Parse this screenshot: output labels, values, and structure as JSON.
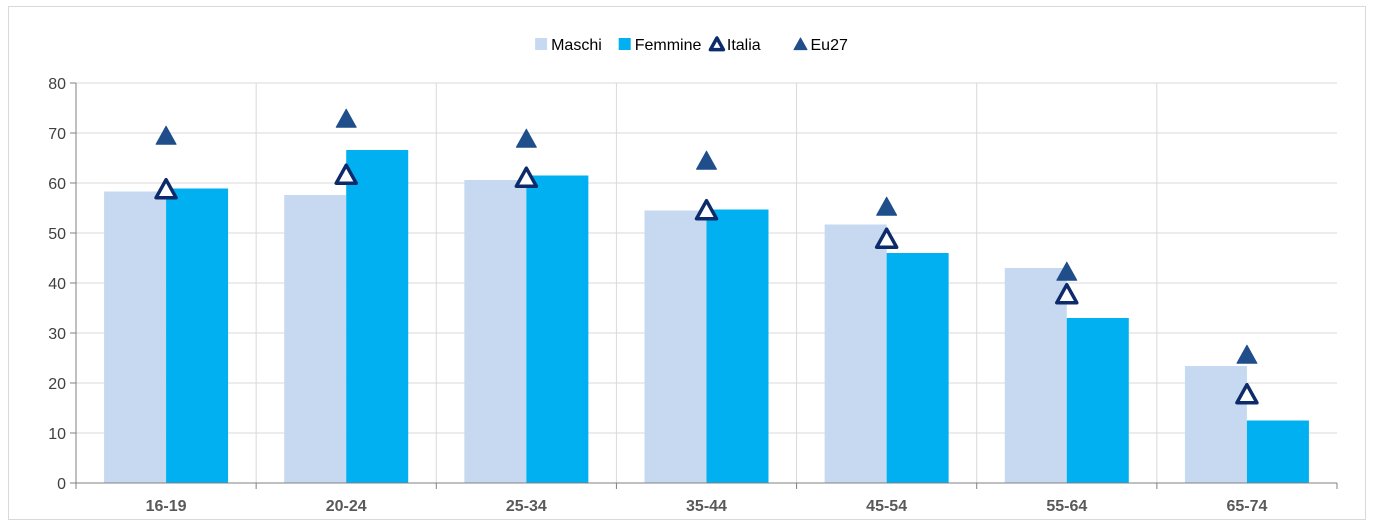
{
  "chart_data": {
    "type": "bar",
    "title": "",
    "xlabel": "",
    "ylabel": "",
    "ylim": [
      0,
      80
    ],
    "yticks": [
      0,
      10,
      20,
      30,
      40,
      50,
      60,
      70,
      80
    ],
    "grid": true,
    "legend_position": "top-center",
    "categories": [
      "16-19",
      "20-24",
      "25-34",
      "35-44",
      "45-54",
      "55-64",
      "65-74"
    ],
    "series": [
      {
        "name": "Maschi",
        "type": "bar",
        "color": "#c6d9f0",
        "values": [
          58.3,
          57.6,
          60.6,
          54.5,
          51.7,
          43.0,
          23.4
        ]
      },
      {
        "name": "Femmine",
        "type": "bar",
        "color": "#00b0f0",
        "values": [
          58.9,
          66.6,
          61.5,
          54.7,
          46.0,
          33.0,
          12.5
        ]
      },
      {
        "name": "Italia",
        "type": "marker",
        "marker": "hollow-triangle",
        "color": "#0d2a6b",
        "values": [
          58.5,
          61.4,
          60.8,
          54.3,
          48.6,
          37.5,
          17.5
        ]
      },
      {
        "name": "Eu27",
        "type": "marker",
        "marker": "filled-triangle",
        "color": "#1f4e8a",
        "values": [
          69.2,
          72.6,
          68.6,
          64.2,
          55.0,
          42.0,
          25.4
        ]
      }
    ]
  }
}
